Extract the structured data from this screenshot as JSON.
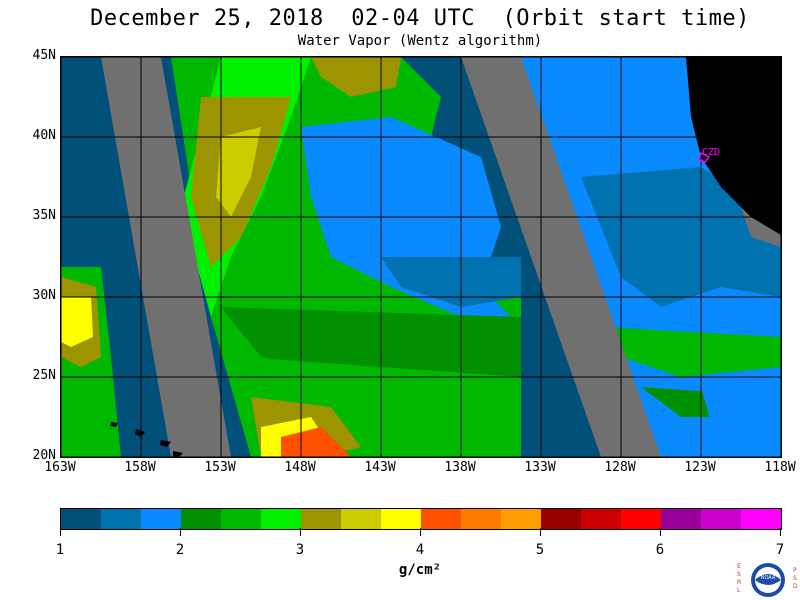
{
  "title": "December 25, 2018  02-04 UTC  (Orbit start time)",
  "subtitle": "Water Vapor (Wentz algorithm)",
  "map": {
    "lon_range": [
      -163,
      -118
    ],
    "lat_range": [
      20,
      45
    ],
    "lat_ticks": [
      {
        "value": 45,
        "label": "45N"
      },
      {
        "value": 40,
        "label": "40N"
      },
      {
        "value": 35,
        "label": "35N"
      },
      {
        "value": 30,
        "label": "30N"
      },
      {
        "value": 25,
        "label": "25N"
      },
      {
        "value": 20,
        "label": "20N"
      }
    ],
    "lon_ticks": [
      {
        "value": -163,
        "label": "163W"
      },
      {
        "value": -158,
        "label": "158W"
      },
      {
        "value": -153,
        "label": "153W"
      },
      {
        "value": -148,
        "label": "148W"
      },
      {
        "value": -143,
        "label": "143W"
      },
      {
        "value": -138,
        "label": "138W"
      },
      {
        "value": -133,
        "label": "133W"
      },
      {
        "value": -128,
        "label": "128W"
      },
      {
        "value": -123,
        "label": "123W"
      },
      {
        "value": -118,
        "label": "118W"
      }
    ],
    "station_label": "CZD",
    "colors": {
      "no_data_swath_gap": "#707070",
      "land": "#000000",
      "station_marker": "#ff00ff",
      "grid_lines": "#000000"
    }
  },
  "colorbar": {
    "units": "g/cm²",
    "min": 1,
    "max": 7,
    "tick_labels": [
      "1",
      "2",
      "3",
      "4",
      "5",
      "6",
      "7"
    ],
    "colors": [
      "#00507a",
      "#0072b0",
      "#0a8aff",
      "#009000",
      "#00b800",
      "#00f000",
      "#9c9400",
      "#cccc00",
      "#ffff00",
      "#ff5000",
      "#ff7a00",
      "#ff9c00",
      "#9a0000",
      "#cc0000",
      "#ff0000",
      "#990099",
      "#cc00cc",
      "#ff00ff"
    ]
  },
  "logo": {
    "left_letters": "ESRL",
    "right_letters": "PSD",
    "center_text": "NOAA"
  }
}
